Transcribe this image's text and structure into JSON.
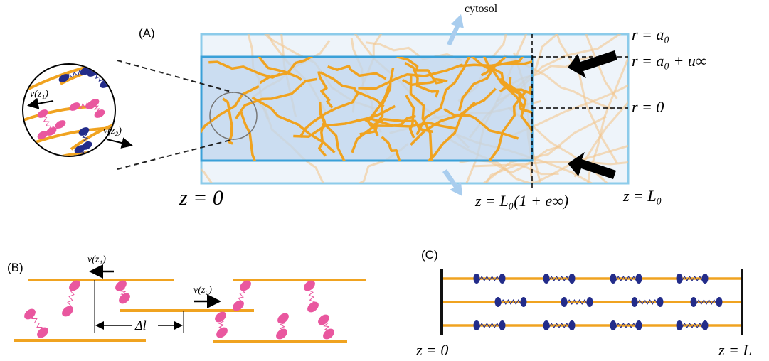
{
  "panel_a": {
    "label": "(A)",
    "cytosol": "cytosol",
    "r_a0": "r = a₀",
    "r_a0_u": "r = a₀ + u∞",
    "r_0": "r = 0",
    "z_0": "z = 0",
    "z_l0e": "z = L₀(1 + e∞)",
    "z_l0": "z = L₀",
    "inset_v1": "v(z₁)",
    "inset_v2": "v(z₂)"
  },
  "panel_b": {
    "label": "(B)",
    "v1": "v(z₁)",
    "v2": "v(z₂)",
    "delta_l": "Δl"
  },
  "panel_c": {
    "label": "(C)",
    "z_0": "z = 0",
    "z_l": "z = L"
  }
}
